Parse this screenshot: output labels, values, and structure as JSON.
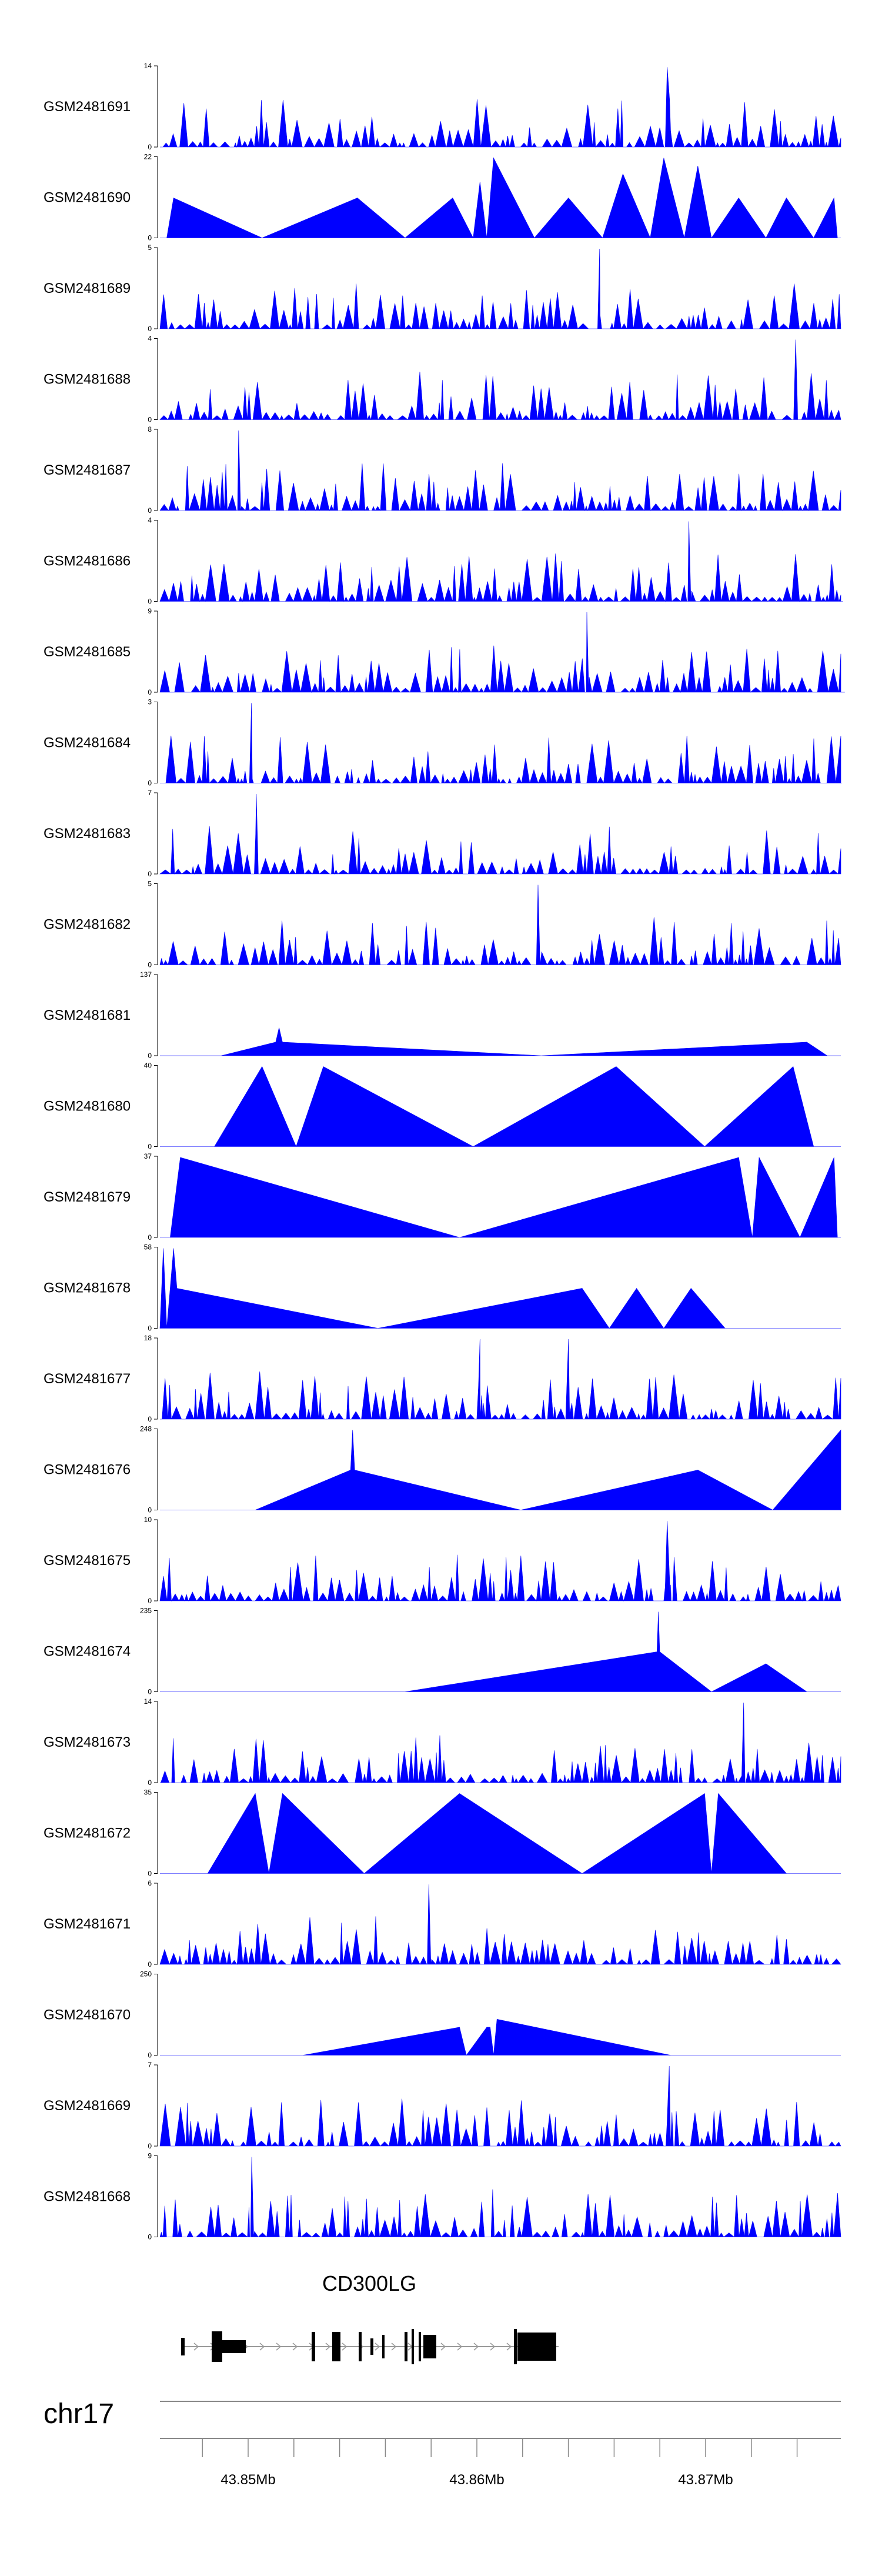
{
  "chart_data": {
    "type": "area",
    "tracks": [
      {
        "name": "GSM2481691",
        "ymax": 14
      },
      {
        "name": "GSM2481690",
        "ymax": 22
      },
      {
        "name": "GSM2481689",
        "ymax": 5
      },
      {
        "name": "GSM2481688",
        "ymax": 4
      },
      {
        "name": "GSM2481687",
        "ymax": 8
      },
      {
        "name": "GSM2481686",
        "ymax": 4
      },
      {
        "name": "GSM2481685",
        "ymax": 9
      },
      {
        "name": "GSM2481684",
        "ymax": 3
      },
      {
        "name": "GSM2481683",
        "ymax": 7
      },
      {
        "name": "GSM2481682",
        "ymax": 5
      },
      {
        "name": "GSM2481681",
        "ymax": 137
      },
      {
        "name": "GSM2481680",
        "ymax": 40
      },
      {
        "name": "GSM2481679",
        "ymax": 37
      },
      {
        "name": "GSM2481678",
        "ymax": 58
      },
      {
        "name": "GSM2481677",
        "ymax": 18
      },
      {
        "name": "GSM2481676",
        "ymax": 248
      },
      {
        "name": "GSM2481675",
        "ymax": 10
      },
      {
        "name": "GSM2481674",
        "ymax": 235
      },
      {
        "name": "GSM2481673",
        "ymax": 14
      },
      {
        "name": "GSM2481672",
        "ymax": 35
      },
      {
        "name": "GSM2481671",
        "ymax": 6
      },
      {
        "name": "GSM2481670",
        "ymax": 250
      },
      {
        "name": "GSM2481669",
        "ymax": 7
      },
      {
        "name": "GSM2481668",
        "ymax": 9
      }
    ],
    "ymin_label": "0",
    "gene": {
      "name": "CD300LG",
      "strand": "+"
    },
    "chromosome": "chr17",
    "x_ticks": [
      "43.85Mb",
      "43.86Mb",
      "43.87Mb"
    ],
    "fill_color": "#0000ff"
  }
}
